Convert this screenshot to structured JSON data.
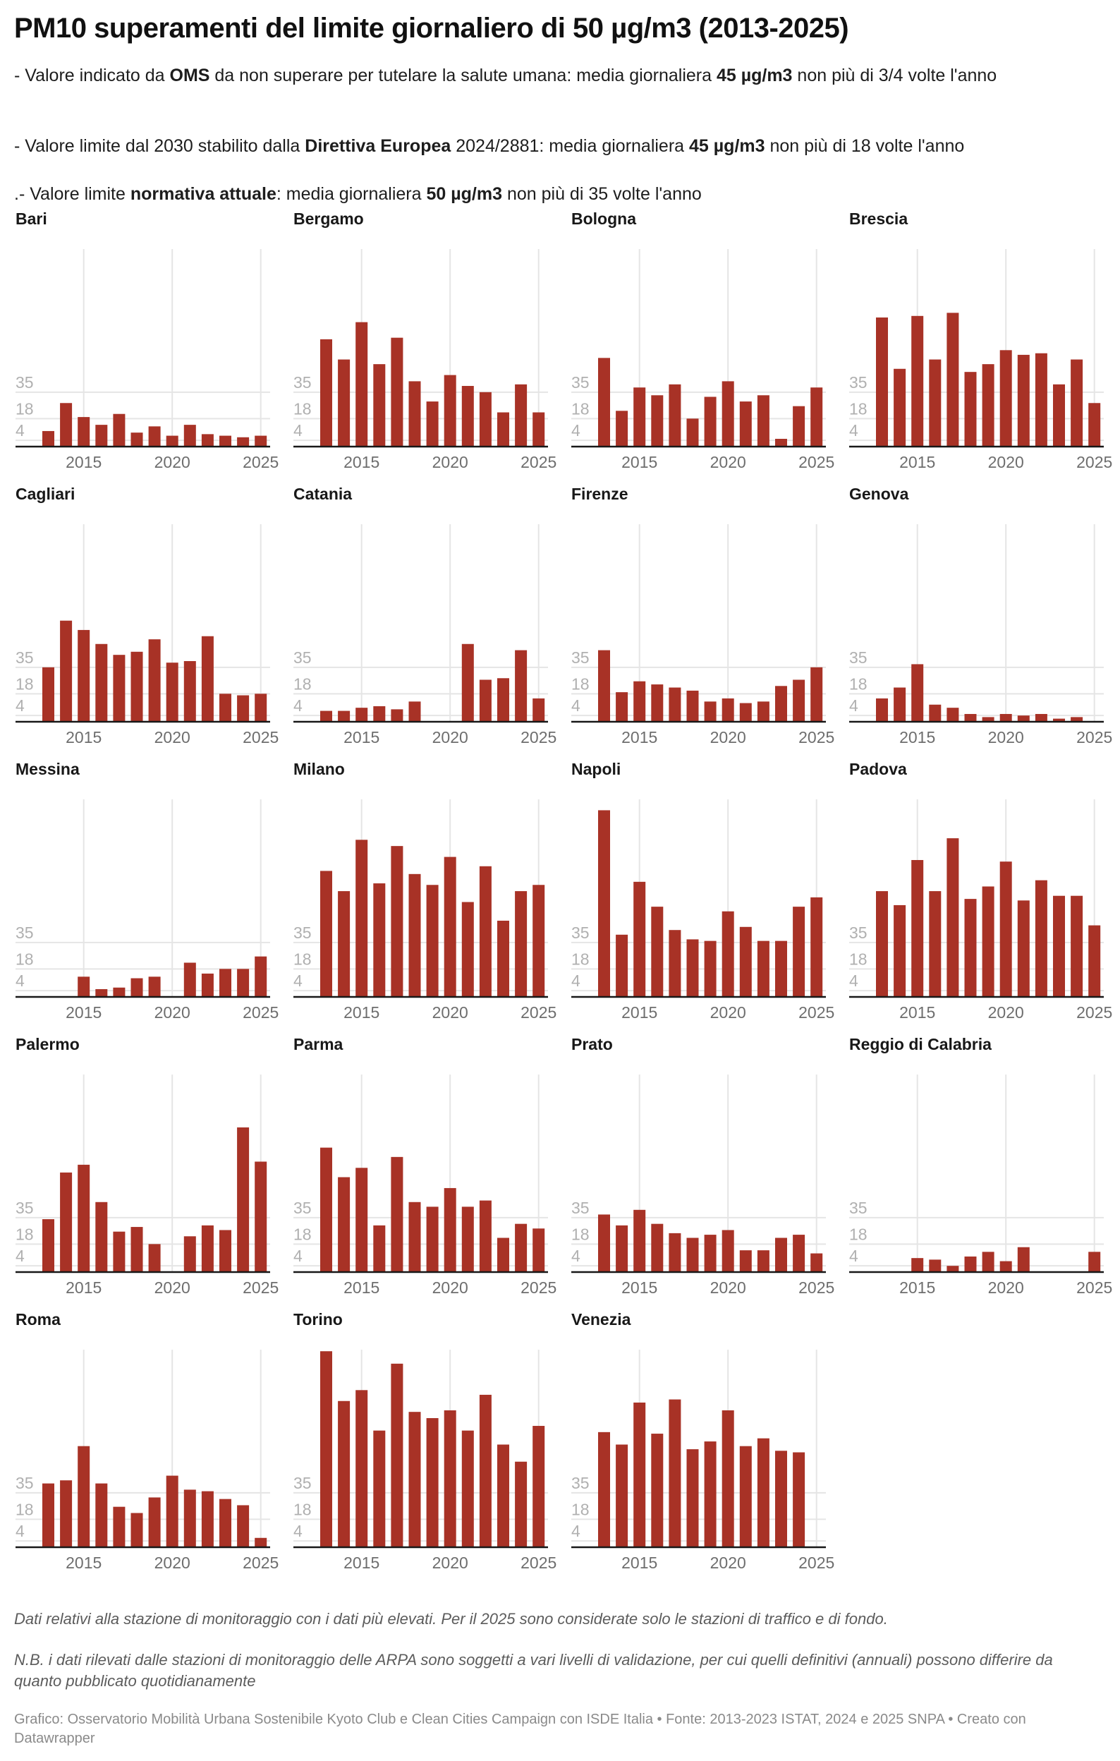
{
  "header": {
    "title": "PM10 superamenti del limite giornaliero di 50 µg/m3 (2013-2025)",
    "desc_lines": [
      [
        {
          "t": "- Valore indicato da ",
          "b": false
        },
        {
          "t": "OMS",
          "b": true
        },
        {
          "t": " da non superare per tutelare la salute umana: media giornaliera ",
          "b": false
        },
        {
          "t": "45 µg/m3",
          "b": true
        },
        {
          "t": " non più di 3/4 volte l'anno",
          "b": false
        }
      ],
      [
        {
          "t": "- Valore limite dal 2030 stabilito dalla ",
          "b": false
        },
        {
          "t": "Direttiva Europea",
          "b": true
        },
        {
          "t": " 2024/2881: media giornaliera ",
          "b": false
        },
        {
          "t": "45 µg/m3",
          "b": true
        },
        {
          "t": " non più di 18 volte l'anno",
          "b": false
        }
      ],
      [
        {
          "t": ".- Valore limite ",
          "b": false
        },
        {
          "t": "normativa attuale",
          "b": true
        },
        {
          "t": ": media giornaliera ",
          "b": false
        },
        {
          "t": "50 µg/m3",
          "b": true
        },
        {
          "t": " non più di 35 volte l'anno",
          "b": false
        }
      ]
    ]
  },
  "colors": {
    "bar": "#a83226",
    "grid": "#e5e5e5",
    "axis": "#181818"
  },
  "chart_data": {
    "type": "bar",
    "layout": "small-multiples",
    "title": "PM10 superamenti del limite giornaliero di 50 µg/m3 (2013-2025)",
    "xlabel": "",
    "ylabel": "",
    "x": [
      2013,
      2014,
      2015,
      2016,
      2017,
      2018,
      2019,
      2020,
      2021,
      2022,
      2023,
      2024,
      2025
    ],
    "x_ticks": [
      "2015",
      "2020",
      "2025"
    ],
    "y_ticks": [
      4,
      18,
      35
    ],
    "ylim": [
      0,
      127
    ],
    "grid": true,
    "series": [
      {
        "name": "Bari",
        "values": [
          10,
          28,
          19,
          14,
          21,
          9,
          13,
          7,
          14,
          8,
          7,
          6,
          7
        ]
      },
      {
        "name": "Bergamo",
        "values": [
          69,
          56,
          80,
          53,
          70,
          42,
          29,
          46,
          39,
          35,
          22,
          40,
          22
        ]
      },
      {
        "name": "Bologna",
        "values": [
          57,
          23,
          38,
          33,
          40,
          18,
          32,
          42,
          29,
          33,
          5,
          26,
          38
        ]
      },
      {
        "name": "Brescia",
        "values": [
          83,
          50,
          84,
          56,
          86,
          48,
          53,
          62,
          59,
          60,
          40,
          56,
          28
        ]
      },
      {
        "name": "Cagliari",
        "values": [
          35,
          65,
          59,
          50,
          43,
          45,
          53,
          38,
          39,
          55,
          18,
          17,
          18
        ]
      },
      {
        "name": "Catania",
        "values": [
          7,
          7,
          9,
          10,
          8,
          13,
          null,
          null,
          50,
          27,
          28,
          46,
          15
        ]
      },
      {
        "name": "Firenze",
        "values": [
          46,
          19,
          26,
          24,
          22,
          20,
          13,
          15,
          12,
          13,
          23,
          27,
          35
        ]
      },
      {
        "name": "Genova",
        "values": [
          15,
          22,
          37,
          11,
          9,
          5,
          3,
          5,
          4,
          5,
          2,
          3,
          null
        ]
      },
      {
        "name": "Messina",
        "values": [
          null,
          null,
          13,
          5,
          6,
          12,
          13,
          null,
          22,
          15,
          18,
          18,
          26
        ]
      },
      {
        "name": "Milano",
        "values": [
          81,
          68,
          101,
          73,
          97,
          79,
          72,
          90,
          61,
          84,
          49,
          68,
          72
        ]
      },
      {
        "name": "Napoli",
        "values": [
          120,
          40,
          74,
          58,
          43,
          37,
          36,
          55,
          45,
          36,
          36,
          58,
          64
        ]
      },
      {
        "name": "Padova",
        "values": [
          68,
          59,
          88,
          68,
          102,
          63,
          71,
          87,
          62,
          75,
          65,
          65,
          46
        ]
      },
      {
        "name": "Palermo",
        "values": [
          34,
          64,
          69,
          45,
          26,
          29,
          18,
          null,
          23,
          30,
          27,
          93,
          71
        ]
      },
      {
        "name": "Parma",
        "values": [
          80,
          61,
          67,
          30,
          74,
          45,
          42,
          54,
          42,
          46,
          22,
          31,
          28
        ]
      },
      {
        "name": "Prato",
        "values": [
          37,
          30,
          40,
          31,
          25,
          22,
          24,
          27,
          14,
          14,
          22,
          24,
          12
        ]
      },
      {
        "name": "Reggio di Calabria",
        "values": [
          null,
          null,
          9,
          8,
          4,
          10,
          13,
          7,
          16,
          null,
          null,
          null,
          13
        ]
      },
      {
        "name": "Roma",
        "values": [
          41,
          43,
          65,
          41,
          26,
          22,
          32,
          46,
          37,
          36,
          31,
          27,
          6
        ]
      },
      {
        "name": "Torino",
        "values": [
          126,
          94,
          101,
          75,
          118,
          87,
          83,
          88,
          75,
          98,
          66,
          55,
          78
        ]
      },
      {
        "name": "Venezia",
        "values": [
          74,
          66,
          93,
          73,
          95,
          63,
          68,
          88,
          65,
          70,
          62,
          61,
          null
        ]
      }
    ]
  },
  "footer": {
    "note1": "Dati relativi alla stazione di monitoraggio con i dati più elevati. Per il 2025 sono considerate solo le stazioni di traffico e di fondo.",
    "note2": "N.B. i dati rilevati dalle stazioni di monitoraggio delle ARPA sono soggetti a vari livelli di validazione, per cui quelli definitivi (annuali) possono differire da quanto pubblicato quotidianamente",
    "credit": "Grafico: Osservatorio Mobilità Urbana Sostenibile Kyoto Club e Clean Cities Campaign con ISDE Italia • Fonte: 2013-2023 ISTAT, 2024 e 2025 SNPA • Creato con Datawrapper"
  }
}
